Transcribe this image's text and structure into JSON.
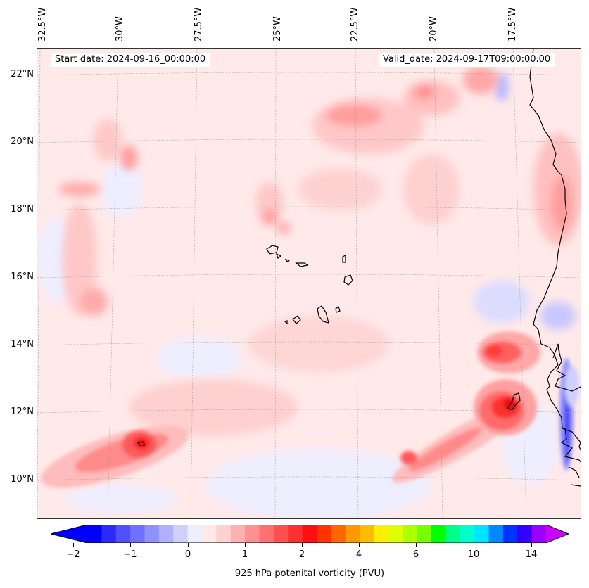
{
  "map": {
    "lon_labels": [
      "32.5°W",
      "30°W",
      "27.5°W",
      "25°W",
      "22.5°W",
      "20°W",
      "17.5°W"
    ],
    "lat_labels": [
      "22°N",
      "20°N",
      "18°N",
      "16°N",
      "14°N",
      "12°N",
      "10°N"
    ],
    "start_date": "Start date: 2024-09-16_00:00:00",
    "valid_date": "Valid_date: 2024-09-17T09:00:00.00",
    "variable": "925 hPa potential vorticity",
    "colors": {
      "neg_strong": "#0000ff",
      "neg_weak": "#eeeeff",
      "pos_weak": "#ffe6e6",
      "pos_mid": "#ff8888",
      "pos_strong": "#ff2020",
      "coast": "#000000"
    }
  },
  "colorbar": {
    "label": "925 hPa potenital vorticity (PVU)",
    "tick_labels": [
      "−2",
      "−1",
      "0",
      "1",
      "2",
      "4",
      "6",
      "10",
      "14"
    ],
    "colors": [
      "#0000ff",
      "#2a2aff",
      "#5050ff",
      "#7070ff",
      "#9090ff",
      "#b0b0ff",
      "#d0d0ff",
      "#eeeeff",
      "#ffe8e8",
      "#ffd0d0",
      "#ffb0b0",
      "#ff9090",
      "#ff7070",
      "#ff5050",
      "#ff3030",
      "#ff1010",
      "#ff3300",
      "#ff6600",
      "#ff9900",
      "#ffbb00",
      "#ffee00",
      "#ddff00",
      "#aaff00",
      "#77ff00",
      "#00ff00",
      "#00ff88",
      "#00ffcc",
      "#00e5ff",
      "#0088ff",
      "#0033ff",
      "#3300ff",
      "#9900ff"
    ],
    "extend_low_color": "#0000ff",
    "extend_high_color": "#cc00ff"
  }
}
